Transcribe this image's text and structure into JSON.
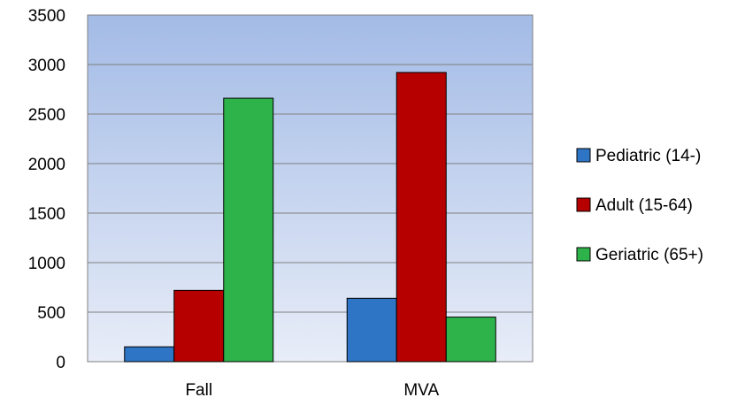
{
  "chart_data": {
    "type": "bar",
    "title": "",
    "xlabel": "",
    "ylabel": "",
    "categories": [
      "Fall",
      "MVA"
    ],
    "series": [
      {
        "name": "Pediatric (14-)",
        "values": [
          150,
          640
        ],
        "color": "#2e75c6"
      },
      {
        "name": "Adult (15-64)",
        "values": [
          720,
          2920
        ],
        "color": "#b60000"
      },
      {
        "name": "Geriatric (65+)",
        "values": [
          2660,
          450
        ],
        "color": "#2db34a"
      }
    ],
    "ylim": [
      0,
      3500
    ],
    "yticks": [
      "0",
      "500",
      "1000",
      "1500",
      "2000",
      "2500",
      "3000",
      "3500"
    ],
    "grid": true,
    "legend_position": "right",
    "plot_background": {
      "top": "#a3bbe6",
      "bottom": "#e8edf8"
    }
  }
}
